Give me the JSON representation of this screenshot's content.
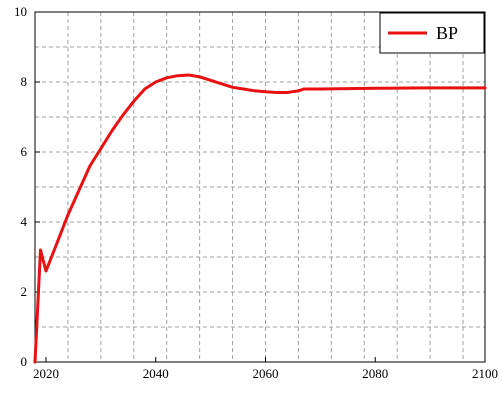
{
  "chart_data": {
    "type": "line",
    "title": "",
    "xlabel": "",
    "ylabel": "",
    "xlim": [
      2018,
      2100
    ],
    "ylim": [
      0,
      10
    ],
    "grid": true,
    "legend": {
      "placement": "top-right",
      "entries": [
        "BP"
      ]
    },
    "x_ticks": [
      2020,
      2040,
      2060,
      2080,
      2100
    ],
    "y_ticks": [
      0,
      2,
      4,
      6,
      8,
      10
    ],
    "x_tick_labels": [
      "2020",
      "2040",
      "2060",
      "2080",
      "2100"
    ],
    "y_tick_labels": [
      "0",
      "2",
      "4",
      "6",
      "8",
      "10"
    ],
    "x_grid": [
      2018,
      2024,
      2030,
      2036,
      2042,
      2048,
      2054,
      2060,
      2066,
      2072,
      2078,
      2084,
      2090,
      2096
    ],
    "y_grid": [
      1,
      2,
      3,
      4,
      5,
      6,
      7,
      8,
      9
    ],
    "series": [
      {
        "name": "BP",
        "color": "#e81010",
        "points": [
          [
            2018.0,
            0.0
          ],
          [
            2019.0,
            3.2
          ],
          [
            2019.5,
            2.9
          ],
          [
            2020.0,
            2.6
          ],
          [
            2022.0,
            3.4
          ],
          [
            2024.0,
            4.2
          ],
          [
            2026.0,
            4.9
          ],
          [
            2028.0,
            5.6
          ],
          [
            2030.0,
            6.1
          ],
          [
            2032.0,
            6.6
          ],
          [
            2034.0,
            7.05
          ],
          [
            2036.0,
            7.45
          ],
          [
            2038.0,
            7.8
          ],
          [
            2040.0,
            8.0
          ],
          [
            2042.0,
            8.12
          ],
          [
            2044.0,
            8.18
          ],
          [
            2046.0,
            8.2
          ],
          [
            2048.0,
            8.15
          ],
          [
            2050.0,
            8.05
          ],
          [
            2052.0,
            7.95
          ],
          [
            2054.0,
            7.85
          ],
          [
            2056.0,
            7.8
          ],
          [
            2058.0,
            7.75
          ],
          [
            2060.0,
            7.72
          ],
          [
            2062.0,
            7.7
          ],
          [
            2064.0,
            7.7
          ],
          [
            2066.0,
            7.75
          ],
          [
            2067.0,
            7.8
          ],
          [
            2070.0,
            7.8
          ],
          [
            2080.0,
            7.82
          ],
          [
            2090.0,
            7.83
          ],
          [
            2100.0,
            7.83
          ]
        ]
      }
    ]
  }
}
